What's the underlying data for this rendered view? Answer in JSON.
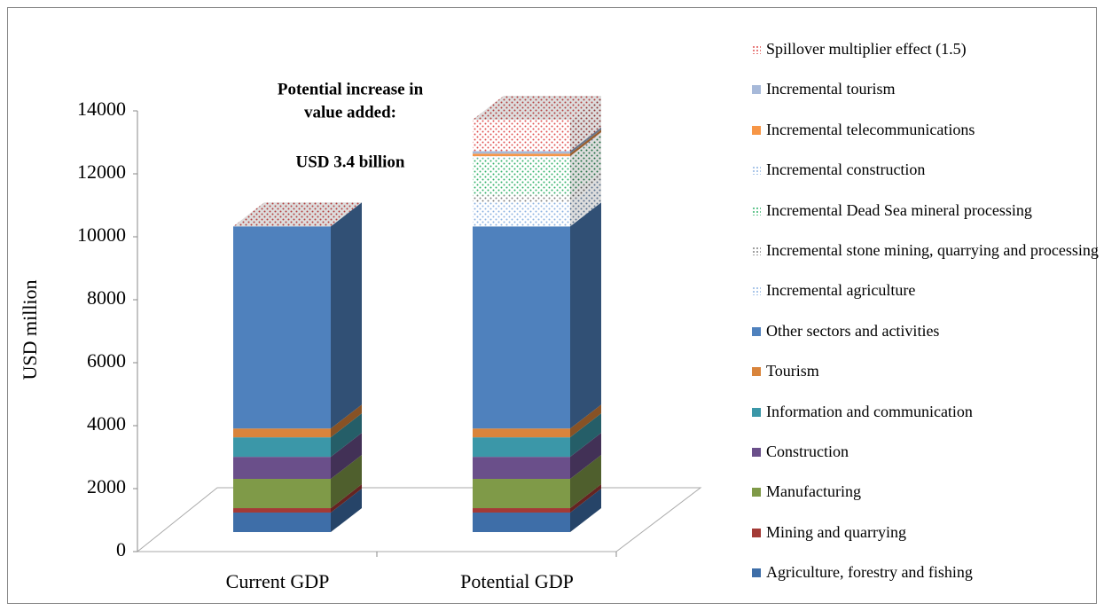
{
  "chart_data": {
    "type": "bar3d_stacked",
    "annotation": [
      "Potential increase in",
      "value added:",
      "USD 3.4 billion"
    ],
    "y_label": "USD million",
    "categories": [
      "Current GDP",
      "Potential GDP"
    ],
    "ylim": [
      0,
      14000
    ],
    "yticks": [
      0,
      2000,
      4000,
      6000,
      8000,
      10000,
      12000,
      14000
    ],
    "series": [
      {
        "name": "Agriculture, forestry and fishing",
        "color": "#3e6ea8",
        "values": [
          620,
          620
        ]
      },
      {
        "name": "Mining and quarrying",
        "color": "#a33a36",
        "values": [
          140,
          140
        ]
      },
      {
        "name": "Manufacturing",
        "color": "#7f9a48",
        "values": [
          930,
          930
        ]
      },
      {
        "name": "Construction",
        "color": "#6a4f8a",
        "values": [
          700,
          700
        ]
      },
      {
        "name": "Information and communication",
        "color": "#3b97a8",
        "values": [
          620,
          620
        ]
      },
      {
        "name": "Tourism",
        "color": "#d9843b",
        "values": [
          280,
          280
        ]
      },
      {
        "name": "Other sectors and activities",
        "color": "#4f81bd",
        "values": [
          6420,
          6420
        ]
      },
      {
        "name": "Incremental agriculture",
        "color": "#8db3e2",
        "pattern": true,
        "values": [
          null,
          760
        ]
      },
      {
        "name": "Incremental stone mining, quarrying and processing",
        "color": "#7f7f7f",
        "pattern": true,
        "values": [
          null,
          230
        ]
      },
      {
        "name": "Incremental Dead Sea mineral processing",
        "color": "#33b36b",
        "pattern": true,
        "values": [
          null,
          1180
        ]
      },
      {
        "name": "Incremental construction",
        "color": "#8db3e2",
        "pattern": true,
        "values": [
          null,
          60
        ]
      },
      {
        "name": "Incremental telecommunications",
        "color": "#f79646",
        "values": [
          null,
          80
        ]
      },
      {
        "name": "Incremental tourism",
        "color": "#a7b9d9",
        "values": [
          null,
          80
        ]
      },
      {
        "name": "Spillover multiplier effect (1.5)",
        "color": "#e05050",
        "pattern": true,
        "values": [
          null,
          1000
        ]
      }
    ]
  }
}
